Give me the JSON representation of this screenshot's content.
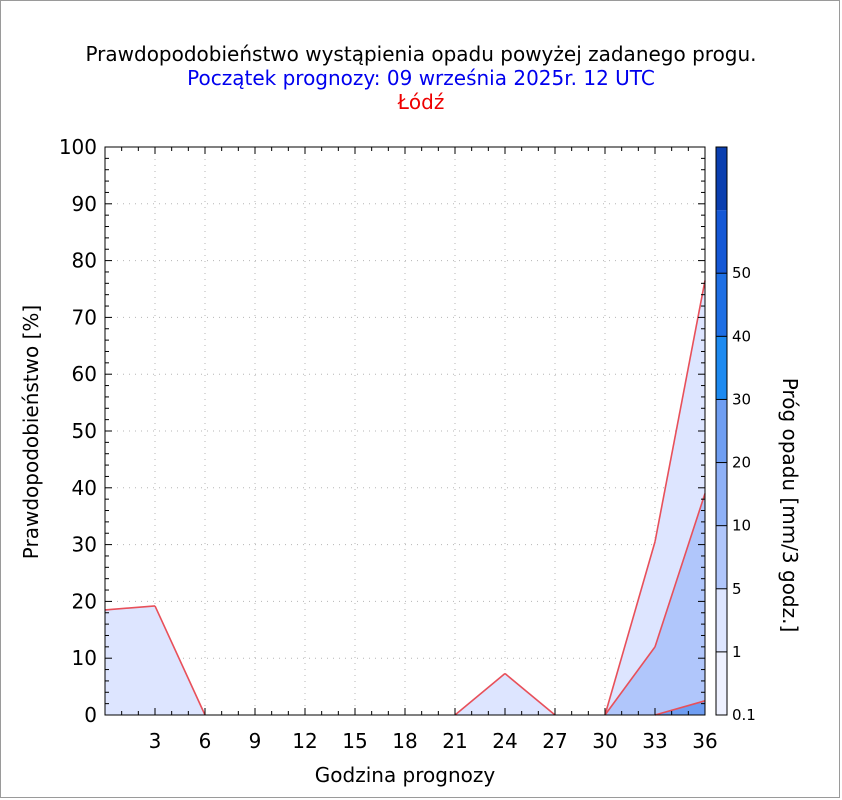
{
  "header": {
    "title": "Prawdopodobieństwo wystąpienia opadu powyżej zadanego progu.",
    "forecast_start": "Początek prognozy: 09 września 2025r. 12 UTC",
    "location": "Łódź"
  },
  "chart_data": {
    "type": "area",
    "xlabel": "Godzina prognozy",
    "ylabel": "Prawdopodobieństwo [%]",
    "xlim": [
      0,
      36
    ],
    "ylim": [
      0,
      100
    ],
    "x_ticks": [
      3,
      6,
      9,
      12,
      15,
      18,
      21,
      24,
      27,
      30,
      33,
      36
    ],
    "y_ticks": [
      0,
      10,
      20,
      30,
      40,
      50,
      60,
      70,
      80,
      90,
      100
    ],
    "grid": true,
    "x": [
      0,
      3,
      6,
      9,
      12,
      15,
      18,
      21,
      24,
      27,
      30,
      33,
      36
    ],
    "series": [
      {
        "name": "0.1",
        "color": "#dde5ff",
        "values": [
          18.5,
          19.2,
          0,
          0,
          0,
          0,
          0,
          0,
          7.3,
          0,
          0,
          30.5,
          76.5
        ]
      },
      {
        "name": "1",
        "color": "#b0c6fb",
        "values": [
          0,
          0,
          0,
          0,
          0,
          0,
          0,
          0,
          0,
          0,
          0,
          12,
          39
        ]
      },
      {
        "name": "5",
        "color": "#6f9ef2",
        "values": [
          0,
          0,
          0,
          0,
          0,
          0,
          0,
          0,
          0,
          0,
          0,
          0,
          2.5
        ]
      }
    ],
    "series_line_color": "#e8505a",
    "colorbar": {
      "label": "Próg opadu [mm/3 godz.]",
      "labels": [
        "0.1",
        "1",
        "5",
        "10",
        "20",
        "30",
        "40",
        "50"
      ],
      "colors": [
        "#eef1ff",
        "#dde5ff",
        "#b0c6fb",
        "#8fb1f7",
        "#6f9ef2",
        "#1d8af0",
        "#1e6fe4",
        "#1558d6",
        "#0b3fb0"
      ]
    }
  }
}
